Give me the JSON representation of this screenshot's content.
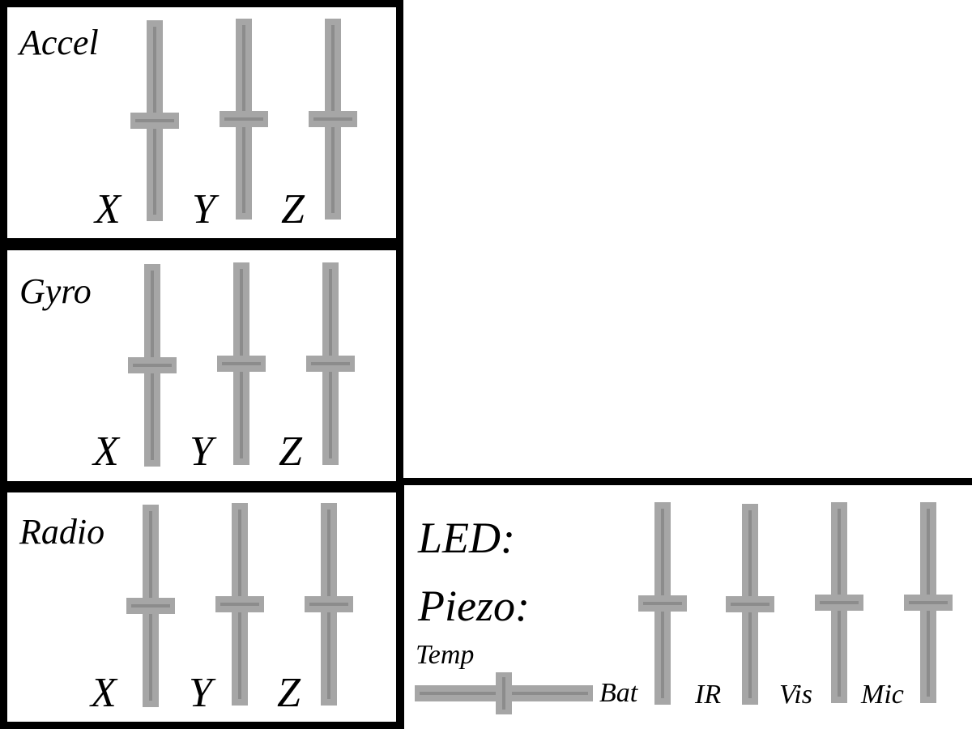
{
  "accel": {
    "title": "Accel",
    "sliders": [
      {
        "label": "X",
        "value": 0.5
      },
      {
        "label": "Y",
        "value": 0.5
      },
      {
        "label": "Z",
        "value": 0.5
      }
    ]
  },
  "gyro": {
    "title": "Gyro",
    "sliders": [
      {
        "label": "X",
        "value": 0.5
      },
      {
        "label": "Y",
        "value": 0.5
      },
      {
        "label": "Z",
        "value": 0.5
      }
    ]
  },
  "radio": {
    "title": "Radio",
    "sliders": [
      {
        "label": "X",
        "value": 0.5
      },
      {
        "label": "Y",
        "value": 0.5
      },
      {
        "label": "Z",
        "value": 0.5
      }
    ]
  },
  "misc": {
    "led_label": "LED:",
    "piezo_label": "Piezo:",
    "temp": {
      "label": "Temp",
      "value": 0.5
    },
    "sliders": [
      {
        "label": "Bat",
        "value": 0.5
      },
      {
        "label": "IR",
        "value": 0.5
      },
      {
        "label": "Vis",
        "value": 0.5
      },
      {
        "label": "Mic",
        "value": 0.5
      }
    ]
  },
  "colors": {
    "slider_fill": "#a6a6a6",
    "slider_line": "#8c8c8c",
    "border": "#000000"
  }
}
